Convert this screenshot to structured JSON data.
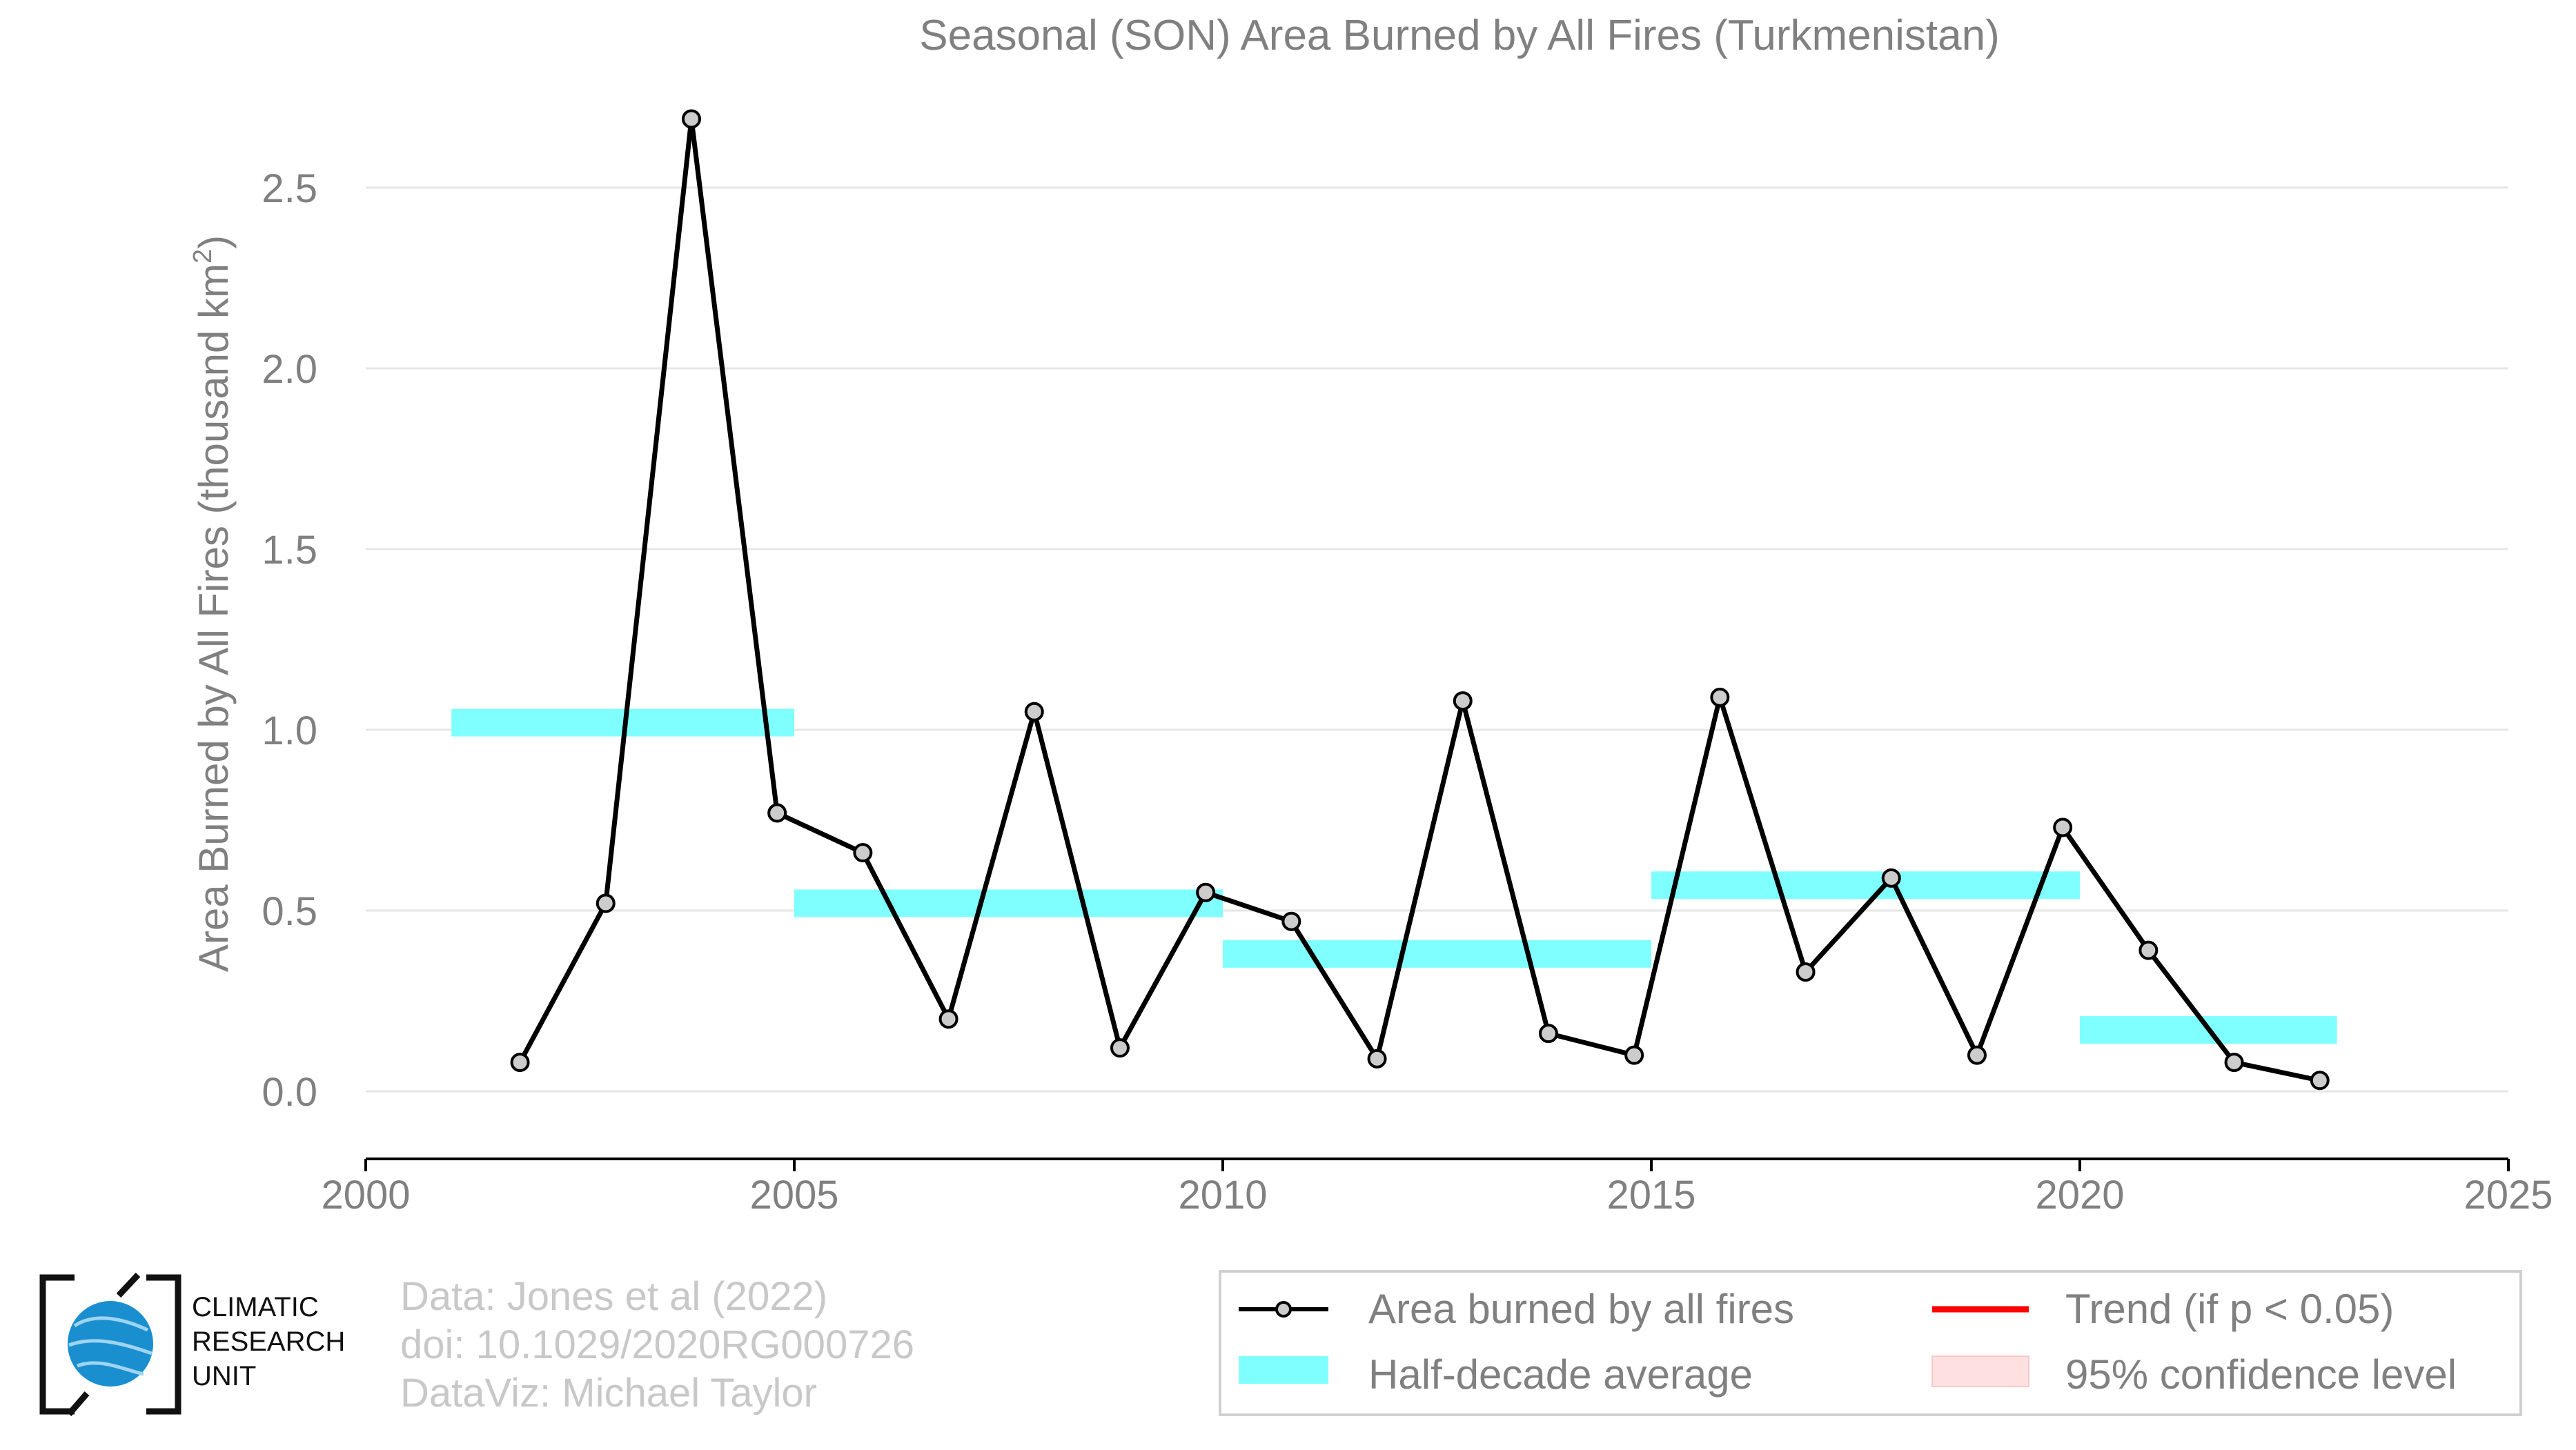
{
  "chart_data": {
    "type": "line",
    "title": "Seasonal (SON) Area Burned by All Fires (Turkmenistan)",
    "xlabel": "",
    "ylabel": "Area Burned by All Fires (thousand km",
    "ylabel_sup": "2",
    "ylabel_close": ")",
    "xlim": [
      2000,
      2025
    ],
    "ylim": [
      -0.18,
      2.75
    ],
    "x_ticks": [
      2000,
      2005,
      2010,
      2015,
      2020,
      2025
    ],
    "x_tick_labels": [
      "2000",
      "2005",
      "2010",
      "2015",
      "2020",
      "2025"
    ],
    "y_ticks": [
      0.0,
      0.5,
      1.0,
      1.5,
      2.0,
      2.5
    ],
    "y_tick_labels": [
      "0.0",
      "0.5",
      "1.0",
      "1.5",
      "2.0",
      "2.5"
    ],
    "grid": "horizontal",
    "series": [
      {
        "name": "Area burned by all fires",
        "color": "#000000",
        "marker_fill": "#cccccc",
        "x": [
          2001.8,
          2002.8,
          2003.8,
          2004.8,
          2005.8,
          2006.8,
          2007.8,
          2008.8,
          2009.8,
          2010.8,
          2011.8,
          2012.8,
          2013.8,
          2014.8,
          2015.8,
          2016.8,
          2017.8,
          2018.8,
          2019.8,
          2020.8,
          2021.8,
          2022.8
        ],
        "values": [
          0.08,
          0.52,
          2.69,
          0.77,
          0.66,
          0.2,
          1.05,
          0.12,
          0.55,
          0.47,
          0.09,
          1.08,
          0.16,
          0.1,
          1.09,
          0.33,
          0.59,
          0.1,
          0.73,
          0.39,
          0.08,
          0.03
        ]
      },
      {
        "name": "Half-decade average",
        "color": "#7fffff",
        "segments": [
          {
            "x0": 2001,
            "x1": 2005,
            "value": 1.02
          },
          {
            "x0": 2005,
            "x1": 2010,
            "value": 0.52
          },
          {
            "x0": 2010,
            "x1": 2015,
            "value": 0.38
          },
          {
            "x0": 2015,
            "x1": 2020,
            "value": 0.57
          },
          {
            "x0": 2020,
            "x1": 2023,
            "value": 0.17
          }
        ]
      }
    ],
    "legend": {
      "placement": "bottom-right",
      "items": [
        {
          "label": "Area burned by all fires",
          "kind": "line-marker",
          "color": "#000000"
        },
        {
          "label": "Trend (if p < 0.05)",
          "kind": "line",
          "color": "#ff0000"
        },
        {
          "label": "Half-decade average",
          "kind": "band",
          "color": "#7fffff"
        },
        {
          "label": "95% confidence level",
          "kind": "box",
          "color": "#ffe0e0"
        }
      ]
    }
  },
  "credits": {
    "line1": "Data: Jones et al (2022)",
    "line2": "doi: 10.1029/2020RG000726",
    "line3": "DataViz: Michael Taylor"
  },
  "logo": {
    "line1": "CLIMATIC",
    "line2": "RESEARCH",
    "line3": "UNIT"
  }
}
